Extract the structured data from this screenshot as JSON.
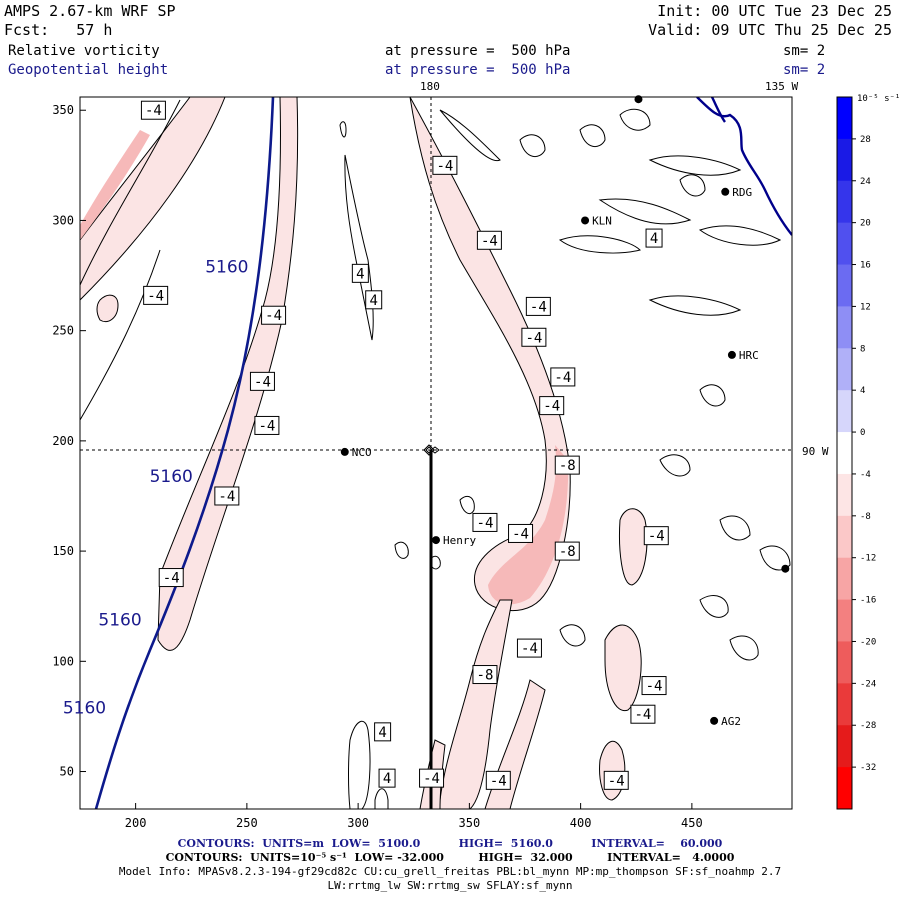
{
  "header": {
    "title": "AMPS 2.67-km WRF SP",
    "fcst": "Fcst:   57 h",
    "init": "Init: 00 UTC Tue 23 Dec 25",
    "valid": "Valid: 09 UTC Thu 25 Dec 25",
    "field1": {
      "name": "Relative vorticity",
      "pressure": "at pressure =  500 hPa",
      "sm": "sm= 2"
    },
    "field2": {
      "name": "Geopotential height",
      "pressure": "at pressure =  500 hPa",
      "sm": "sm= 2"
    },
    "lon_top": "180",
    "lon_right_top": "135 W",
    "lat_right": "90 W"
  },
  "footer": {
    "line1": "CONTOURS:  UNITS=m  LOW=  5100.0          HIGH=  5160.0          INTERVAL=    60.000",
    "line2": "CONTOURS:  UNITS=10⁻⁵ s⁻¹  LOW= -32.000         HIGH=  32.000         INTERVAL=   4.0000",
    "line3": "Model Info: MPASv8.2.3-194-gf29cd82c CU:cu_grell_freitas PBL:bl_mynn MP:mp_thompson SF:sf_noahmp 2.7",
    "line4": "LW:rrtmg_lw SW:rrtmg_sw SFLAY:sf_mynn"
  },
  "chart_data": {
    "type": "contour-map",
    "xlim": [
      175,
      495
    ],
    "ylim": [
      33,
      356
    ],
    "xticks": [
      200,
      250,
      300,
      350,
      400,
      450
    ],
    "yticks": [
      50,
      100,
      150,
      200,
      250,
      300,
      350
    ],
    "colorbar": {
      "units": "10⁻⁵ s⁻¹",
      "levels": [
        32,
        28,
        24,
        20,
        16,
        12,
        8,
        4,
        0,
        -4,
        -8,
        -12,
        -16,
        -20,
        -24,
        -28,
        -32
      ],
      "colors": [
        "#0000ff",
        "#1a1ae6",
        "#3535eb",
        "#5050ef",
        "#6b6bf2",
        "#8e8ef5",
        "#b0b0f8",
        "#d6d6fb",
        "#ffffff",
        "#fde5e5",
        "#fbc8c8",
        "#f7a5a5",
        "#f38080",
        "#ee5c5c",
        "#ea3a3a",
        "#e51b1b",
        "#ff0000"
      ]
    },
    "stations": [
      {
        "name": "KLN",
        "x": 402,
        "y": 300
      },
      {
        "name": "RDG",
        "x": 465,
        "y": 313
      },
      {
        "name": "HRC",
        "x": 468,
        "y": 239
      },
      {
        "name": "NCO",
        "x": 294,
        "y": 195
      },
      {
        "name": "Henry",
        "x": 335,
        "y": 155
      },
      {
        "name": "AG2",
        "x": 460,
        "y": 73
      },
      {
        "name": "",
        "x": 492,
        "y": 142
      },
      {
        "name": "",
        "x": 426,
        "y": 355
      }
    ],
    "pole": {
      "x": 334,
      "y": 196
    },
    "geopotential_labels": [
      {
        "text": "5160",
        "x": 241,
        "y": 279
      },
      {
        "text": "5160",
        "x": 216,
        "y": 184
      },
      {
        "text": "5160",
        "x": 193,
        "y": 119
      },
      {
        "text": "5160",
        "x": 177,
        "y": 79
      }
    ],
    "vorticity_labels": [
      {
        "text": "-4",
        "x": 208,
        "y": 350
      },
      {
        "text": "-4",
        "x": 209,
        "y": 266
      },
      {
        "text": "-4",
        "x": 262,
        "y": 257
      },
      {
        "text": "-4",
        "x": 257,
        "y": 227
      },
      {
        "text": "-4",
        "x": 259,
        "y": 207
      },
      {
        "text": "-4",
        "x": 241,
        "y": 175
      },
      {
        "text": "-4",
        "x": 216,
        "y": 138
      },
      {
        "text": "4",
        "x": 301,
        "y": 276
      },
      {
        "text": "4",
        "x": 307,
        "y": 264
      },
      {
        "text": "-4",
        "x": 339,
        "y": 325
      },
      {
        "text": "-4",
        "x": 359,
        "y": 291
      },
      {
        "text": "-4",
        "x": 381,
        "y": 261
      },
      {
        "text": "-4",
        "x": 379,
        "y": 247
      },
      {
        "text": "-4",
        "x": 392,
        "y": 229
      },
      {
        "text": "-4",
        "x": 387,
        "y": 216
      },
      {
        "text": "-8",
        "x": 394,
        "y": 189
      },
      {
        "text": "-4",
        "x": 357,
        "y": 163
      },
      {
        "text": "-4",
        "x": 373,
        "y": 158
      },
      {
        "text": "-8",
        "x": 394,
        "y": 150
      },
      {
        "text": "-4",
        "x": 434,
        "y": 157
      },
      {
        "text": "4",
        "x": 433,
        "y": 292
      },
      {
        "text": "-4",
        "x": 377,
        "y": 106
      },
      {
        "text": "-8",
        "x": 357,
        "y": 94
      },
      {
        "text": "-4",
        "x": 433,
        "y": 89
      },
      {
        "text": "-4",
        "x": 428,
        "y": 76
      },
      {
        "text": "4",
        "x": 311,
        "y": 68
      },
      {
        "text": "4",
        "x": 313,
        "y": 47
      },
      {
        "text": "-4",
        "x": 333,
        "y": 47
      },
      {
        "text": "-4",
        "x": 363,
        "y": 46
      },
      {
        "text": "-4",
        "x": 416,
        "y": 46
      }
    ]
  }
}
